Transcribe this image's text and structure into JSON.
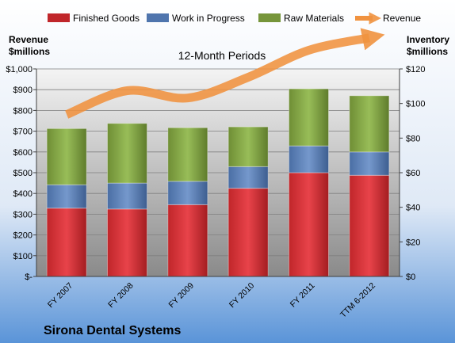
{
  "chart_data": {
    "type": "bar",
    "stacked": true,
    "title": "12-Month Periods",
    "footer_title": "Sirona Dental Systems",
    "left_axis_label_line1": "Revenue",
    "left_axis_label_line2": "$millions",
    "right_axis_label_line1": "Inventory",
    "right_axis_label_line2": "$millions",
    "categories": [
      "FY 2007",
      "FY 2008",
      "FY 2009",
      "FY 2010",
      "FY 2011",
      "TTM 6-2012"
    ],
    "inventory_axis": {
      "min": 0,
      "max": 120,
      "step": 20,
      "tick_labels": [
        "$0",
        "$20",
        "$40",
        "$60",
        "$80",
        "$100",
        "$120"
      ]
    },
    "revenue_axis": {
      "min": 0,
      "max": 1000,
      "step": 100,
      "tick_labels": [
        "$-",
        "$100",
        "$200",
        "$300",
        "$400",
        "$500",
        "$600",
        "$700",
        "$800",
        "$900",
        "$1,000"
      ]
    },
    "series": [
      {
        "name": "Finished Goods",
        "axis": "inventory",
        "color": "#c0262a",
        "values": [
          39.5,
          39.0,
          41.5,
          51.0,
          60.0,
          58.5
        ]
      },
      {
        "name": "Work in Progress",
        "axis": "inventory",
        "color": "#4f75ad",
        "values": [
          13.5,
          15.0,
          13.5,
          12.5,
          15.5,
          13.5
        ]
      },
      {
        "name": "Raw Materials",
        "axis": "inventory",
        "color": "#76953a",
        "values": [
          32.5,
          34.5,
          31.0,
          23.0,
          33.0,
          32.5
        ]
      },
      {
        "name": "Revenue",
        "axis": "revenue",
        "type": "line",
        "color": "#f0923f",
        "values": [
          780,
          895,
          860,
          960,
          1090,
          1150
        ]
      }
    ],
    "legend_position": "top",
    "grid": true,
    "plot_background_gradient": [
      "#f2f2f2",
      "#8c8c8c"
    ],
    "page_background_gradient": [
      "#ffffff",
      "#5a94d8"
    ]
  }
}
